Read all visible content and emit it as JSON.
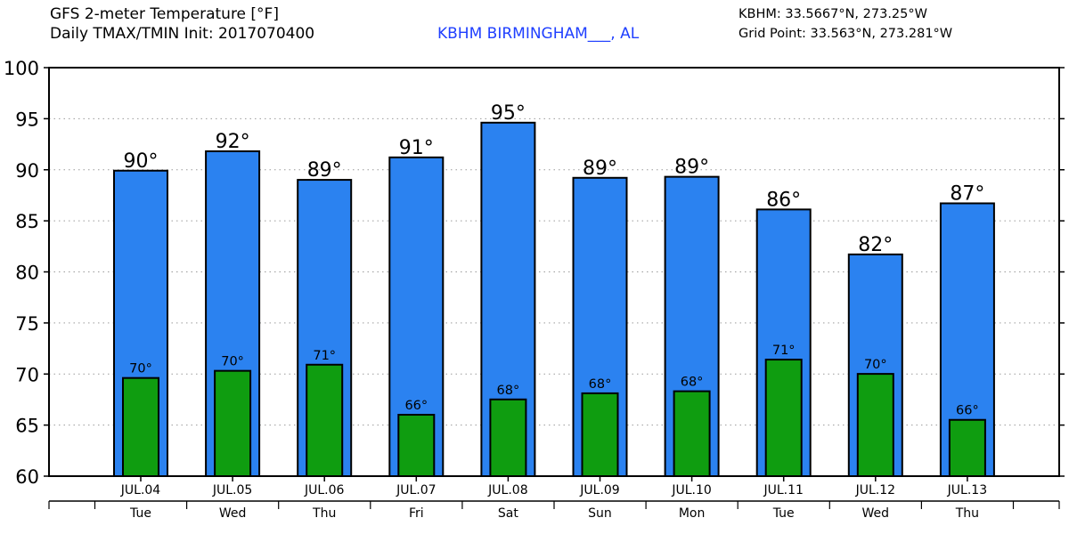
{
  "header": {
    "title_line1": "GFS 2-meter Temperature [°F]",
    "title_line2": "Daily TMAX/TMIN Init: 2017070400",
    "station": "KBHM BIRMINGHAM___, AL",
    "station_coords": "KBHM: 33.5667°N, 273.25°W",
    "grid_point": "Grid Point: 33.563°N, 273.281°W"
  },
  "colors": {
    "tmax_bar": "#2b82f0",
    "tmin_bar": "#0f9d10",
    "gridline": "#9a9a9a",
    "station_text": "#1f3fff"
  },
  "chart_data": {
    "type": "bar",
    "categories": [
      "JUL.04",
      "JUL.05",
      "JUL.06",
      "JUL.07",
      "JUL.08",
      "JUL.09",
      "JUL.10",
      "JUL.11",
      "JUL.12",
      "JUL.13"
    ],
    "weekdays": [
      "Tue",
      "Wed",
      "Thu",
      "Fri",
      "Sat",
      "Sun",
      "Mon",
      "Tue",
      "Wed",
      "Thu"
    ],
    "series": [
      {
        "values": [
          90,
          91.9,
          89.1,
          91.3,
          94.7,
          89.3,
          89.4,
          86.2,
          81.8,
          86.8
        ],
        "labels": [
          "90°",
          "92°",
          "89°",
          "91°",
          "95°",
          "89°",
          "89°",
          "86°",
          "82°",
          "87°"
        ]
      },
      {
        "values": [
          69.7,
          70.4,
          71.0,
          66.1,
          67.6,
          68.2,
          68.4,
          71.5,
          70.1,
          65.6
        ],
        "labels": [
          "70°",
          "70°",
          "71°",
          "66°",
          "68°",
          "68°",
          "68°",
          "71°",
          "70°",
          "66°"
        ]
      }
    ],
    "ylim": [
      60,
      100
    ],
    "yticks": [
      60,
      65,
      70,
      75,
      80,
      85,
      90,
      95,
      100
    ],
    "grid": true
  }
}
